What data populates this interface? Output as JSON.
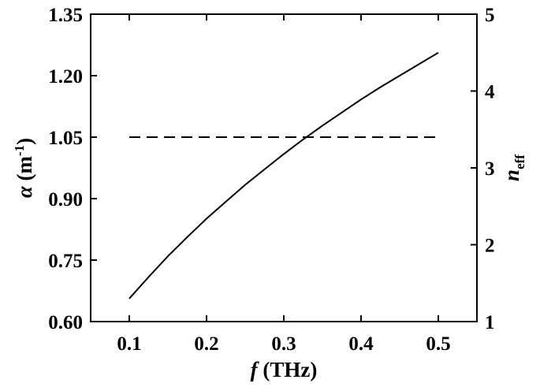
{
  "chart_data": {
    "type": "line",
    "xlabel": {
      "symbol": "f",
      "unit": " (THz)"
    },
    "ylabel_left": {
      "symbol": "α",
      "unit_prefix": " (m",
      "unit_sup": "-1",
      "unit_suffix": ")"
    },
    "ylabel_right": {
      "symbol": "n",
      "subscript": "eff"
    },
    "xlim": [
      0.05,
      0.55
    ],
    "ylim_left": [
      0.6,
      1.35
    ],
    "ylim_right": [
      1,
      5
    ],
    "x_ticks": [
      "0.1",
      "0.2",
      "0.3",
      "0.4",
      "0.5"
    ],
    "y_left_ticks": [
      "0.60",
      "0.75",
      "0.90",
      "1.05",
      "1.20",
      "1.35"
    ],
    "y_right_ticks": [
      "1",
      "2",
      "3",
      "4",
      "5"
    ],
    "grid": false,
    "series": [
      {
        "axis": "right",
        "style": "solid",
        "x": [
          0.1,
          0.125,
          0.15,
          0.175,
          0.2,
          0.225,
          0.25,
          0.275,
          0.3,
          0.325,
          0.35,
          0.375,
          0.4,
          0.425,
          0.45,
          0.475,
          0.5
        ],
        "y": [
          1.3,
          1.58,
          1.85,
          2.1,
          2.34,
          2.56,
          2.78,
          2.98,
          3.18,
          3.37,
          3.55,
          3.72,
          3.89,
          4.05,
          4.2,
          4.35,
          4.5
        ]
      },
      {
        "axis": "left",
        "style": "dashed",
        "x": [
          0.1,
          0.5
        ],
        "y": [
          1.05,
          1.05
        ]
      }
    ]
  }
}
